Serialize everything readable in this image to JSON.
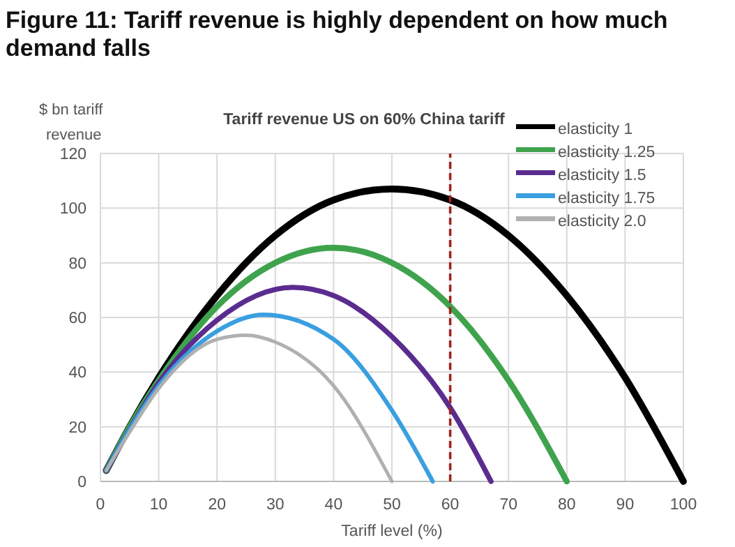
{
  "chart_data": {
    "type": "line",
    "title": "Figure 11: Tariff revenue is highly dependent on how much demand falls",
    "subtitle": "Tariff revenue US on 60% China tariff",
    "xlabel": "Tariff level (%)",
    "ylabel": "$ bn tariff revenue",
    "xlim": [
      0,
      100
    ],
    "xticks": [
      0,
      10,
      20,
      30,
      40,
      50,
      60,
      70,
      80,
      90,
      100
    ],
    "ylim": [
      0,
      120
    ],
    "yticks": [
      0,
      20,
      40,
      60,
      80,
      100,
      120
    ],
    "grid": true,
    "legend": "top right",
    "line_style": "solid",
    "marker": "none",
    "series": [
      {
        "name": "elasticity 1",
        "color": "#000000",
        "x": [
          1,
          5,
          10,
          20,
          30,
          40,
          50,
          60,
          70,
          80,
          90,
          100
        ],
        "values": [
          4,
          20,
          38,
          68,
          90,
          103,
          107,
          103,
          90,
          68,
          38,
          0
        ]
      },
      {
        "name": "elasticity 1.25",
        "color": "#3fa34d",
        "x": [
          1,
          5,
          10,
          20,
          30,
          40,
          50,
          60,
          70,
          80
        ],
        "values": [
          4,
          20,
          37,
          64,
          80,
          85.5,
          80,
          64,
          37,
          0
        ]
      },
      {
        "name": "elasticity 1.5",
        "color": "#5b2c8f",
        "x": [
          1,
          5,
          10,
          20,
          33,
          40,
          50,
          60,
          67
        ],
        "values": [
          4,
          19,
          36,
          59,
          71,
          68,
          53,
          27,
          0
        ]
      },
      {
        "name": "elasticity 1.75",
        "color": "#3a9fe0",
        "x": [
          1,
          5,
          10,
          20,
          28,
          40,
          50,
          57
        ],
        "values": [
          4,
          19,
          35,
          55,
          61,
          52,
          26,
          0
        ]
      },
      {
        "name": "elasticity 2.0",
        "color": "#b0b0b0",
        "x": [
          1,
          5,
          10,
          20,
          25,
          30,
          40,
          50
        ],
        "values": [
          4,
          18,
          34,
          52,
          53.5,
          51,
          35,
          0
        ]
      }
    ],
    "ref_lines": [
      {
        "axis": "x",
        "value": 60,
        "color": "#a0231e",
        "line_style": "dashed"
      }
    ]
  }
}
